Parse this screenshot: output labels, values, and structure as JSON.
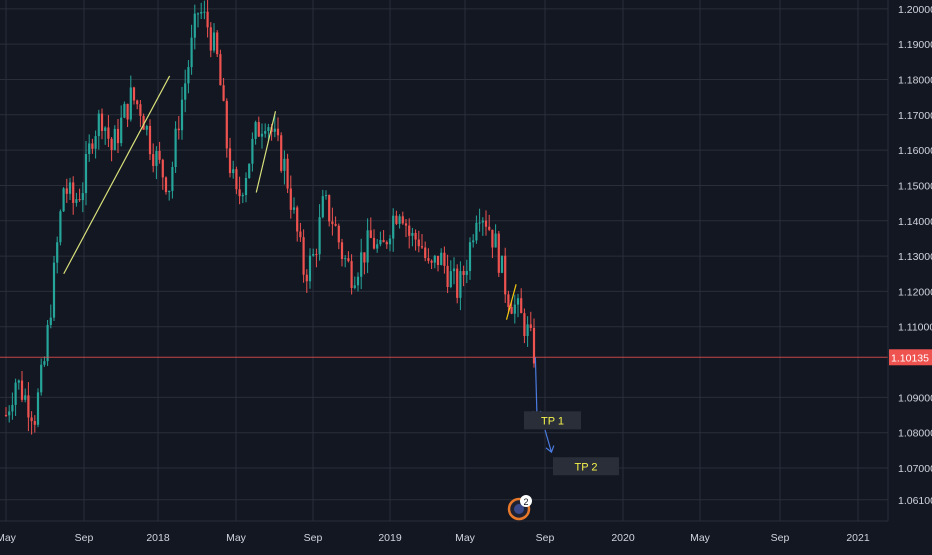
{
  "chart_data": {
    "type": "candlestick",
    "instrument_price_last": "1.10135",
    "y_axis": {
      "ticks": [
        "1.20000",
        "1.19000",
        "1.18000",
        "1.17000",
        "1.16000",
        "1.15000",
        "1.14000",
        "1.13000",
        "1.12000",
        "1.11000",
        "1.09000",
        "1.08000",
        "1.07000",
        "1.06100"
      ],
      "range": [
        1.055,
        1.2025
      ]
    },
    "x_axis": {
      "ticks": [
        "May",
        "Sep",
        "2018",
        "May",
        "Sep",
        "2019",
        "May",
        "Sep",
        "2020",
        "May",
        "Sep",
        "2021"
      ]
    },
    "last_price_line": 1.10135,
    "candles_ohlc_hint": "daily candles, EURUSD-like",
    "price_path": [
      [
        "2017-05",
        1.085
      ],
      [
        "2017-05b",
        1.095
      ],
      [
        "2017-06",
        1.09
      ],
      [
        "2017-06b",
        1.085
      ],
      [
        "2017-07",
        1.1
      ],
      [
        "2017-07b",
        1.125
      ],
      [
        "2017-08",
        1.15
      ],
      [
        "2017-08b",
        1.145
      ],
      [
        "2017-09",
        1.15
      ],
      [
        "2017-09b",
        1.165
      ],
      [
        "2017-10",
        1.17
      ],
      [
        "2017-10b",
        1.16
      ],
      [
        "2017-11",
        1.168
      ],
      [
        "2017-11b",
        1.175
      ],
      [
        "2017-12",
        1.172
      ],
      [
        "2017-12b",
        1.162
      ],
      [
        "2018-01",
        1.155
      ],
      [
        "2018-01b",
        1.15
      ],
      [
        "2018-02",
        1.17
      ],
      [
        "2018-02b",
        1.185
      ],
      [
        "2018-03",
        1.2
      ],
      [
        "2018-03b",
        1.195
      ],
      [
        "2018-04",
        1.185
      ],
      [
        "2018-04b",
        1.16
      ],
      [
        "2018-05",
        1.145
      ],
      [
        "2018-05b",
        1.155
      ],
      [
        "2018-06",
        1.165
      ],
      [
        "2018-06b",
        1.17
      ],
      [
        "2018-07",
        1.162
      ],
      [
        "2018-07b",
        1.155
      ],
      [
        "2018-08",
        1.14
      ],
      [
        "2018-08b",
        1.125
      ],
      [
        "2018-09",
        1.13
      ],
      [
        "2018-09b",
        1.145
      ],
      [
        "2018-10",
        1.14
      ],
      [
        "2018-10b",
        1.13
      ],
      [
        "2018-11",
        1.125
      ],
      [
        "2018-11b",
        1.13
      ],
      [
        "2018-12",
        1.135
      ],
      [
        "2018-12b",
        1.13
      ],
      [
        "2019-01",
        1.14
      ],
      [
        "2019-01b",
        1.145
      ],
      [
        "2019-02",
        1.135
      ],
      [
        "2019-02b",
        1.135
      ],
      [
        "2019-03",
        1.125
      ],
      [
        "2019-03b",
        1.13
      ],
      [
        "2019-04",
        1.125
      ],
      [
        "2019-04b",
        1.12
      ],
      [
        "2019-05",
        1.13
      ],
      [
        "2019-05b",
        1.145
      ],
      [
        "2019-06",
        1.14
      ],
      [
        "2019-06b",
        1.132
      ],
      [
        "2019-07",
        1.12
      ],
      [
        "2019-07b",
        1.115
      ],
      [
        "2019-08",
        1.11
      ],
      [
        "2019-08b",
        1.1013
      ]
    ],
    "trendlines": [
      {
        "from": [
          "2017-08",
          1.125
        ],
        "to": [
          "2018-01b",
          1.181
        ],
        "color": "#d8e07a"
      },
      {
        "from": [
          "2018-06",
          1.148
        ],
        "to": [
          "2018-07",
          1.171
        ],
        "color": "#d8e07a"
      },
      {
        "from": [
          "2019-07",
          1.112
        ],
        "to": [
          "2019-07b",
          1.122
        ],
        "color": "#f2c811"
      }
    ],
    "projection": [
      {
        "from": [
          "2019-08b",
          1.1013
        ],
        "to": [
          "2019-09",
          1.0845
        ]
      },
      {
        "from": [
          "2019-09",
          1.0808
        ],
        "to": [
          "2019-09b",
          1.0745
        ]
      }
    ],
    "annotations": [
      {
        "text": "TP 1",
        "price": 1.0835
      },
      {
        "text": "TP 2",
        "price": 1.0705
      }
    ],
    "event_marker_count": "2",
    "colors": {
      "background": "#131722",
      "grid": "#2a2e39",
      "up": "#26a69a",
      "down": "#ef5350",
      "axis_text": "#d1d4dc",
      "last_price_label_bg": "#ef5350",
      "annotation_bg": "#2a2e39",
      "annotation_text": "#f5f34a",
      "arrow": "#4a7be0",
      "event_marker": "#e8782a"
    }
  }
}
